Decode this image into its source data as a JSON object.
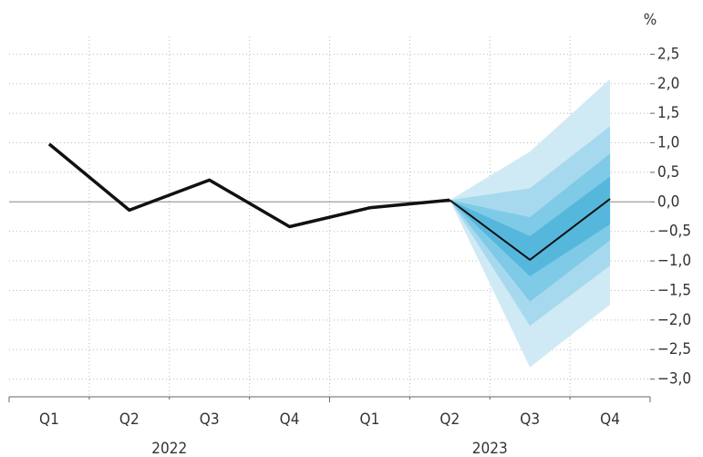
{
  "chart_data": {
    "type": "fan",
    "y_unit": "%",
    "categories": [
      "Q1",
      "Q2",
      "Q3",
      "Q4",
      "Q1",
      "Q2",
      "Q3",
      "Q4"
    ],
    "year_groups": [
      "2022",
      "2023"
    ],
    "series": [
      {
        "color": "#111111",
        "line_width": 3.5,
        "values": [
          0.98,
          -0.14,
          0.37,
          -0.42,
          -0.1,
          0.03,
          null,
          null
        ]
      },
      {
        "color": "#111111",
        "line_width": 2,
        "values": [
          null,
          null,
          null,
          null,
          null,
          0.03,
          -0.98,
          0.05
        ]
      }
    ],
    "bands": [
      {
        "color": "#d0eaf5",
        "lower": [
          null,
          null,
          null,
          null,
          null,
          0.03,
          -2.8,
          -1.74
        ],
        "upper": [
          null,
          null,
          null,
          null,
          null,
          0.03,
          0.85,
          2.08
        ]
      },
      {
        "color": "#a7d9ee",
        "lower": [
          null,
          null,
          null,
          null,
          null,
          0.03,
          -2.1,
          -1.08
        ],
        "upper": [
          null,
          null,
          null,
          null,
          null,
          0.03,
          0.23,
          1.28
        ]
      },
      {
        "color": "#7fcae6",
        "lower": [
          null,
          null,
          null,
          null,
          null,
          0.03,
          -1.69,
          -0.65
        ],
        "upper": [
          null,
          null,
          null,
          null,
          null,
          0.03,
          -0.26,
          0.82
        ]
      },
      {
        "color": "#56b7dc",
        "lower": [
          null,
          null,
          null,
          null,
          null,
          0.03,
          -1.26,
          -0.38
        ],
        "upper": [
          null,
          null,
          null,
          null,
          null,
          0.03,
          -0.58,
          0.43
        ]
      }
    ],
    "ylim": [
      -3.3,
      2.8
    ],
    "yticks": [
      {
        "value": 2.5,
        "label": "2,5"
      },
      {
        "value": 2.0,
        "label": "2,0"
      },
      {
        "value": 1.5,
        "label": "1,5"
      },
      {
        "value": 1.0,
        "label": "1,0"
      },
      {
        "value": 0.5,
        "label": "0,5"
      },
      {
        "value": 0,
        "label": "0,0"
      },
      {
        "value": -0.5,
        "label": "−0,5"
      },
      {
        "value": -1.0,
        "label": "−1,0"
      },
      {
        "value": -1.5,
        "label": "−1,5"
      },
      {
        "value": -2.0,
        "label": "−2,0"
      },
      {
        "value": -2.5,
        "label": "−2,5"
      },
      {
        "value": -3.0,
        "label": "−3,0"
      }
    ],
    "grid": true
  }
}
